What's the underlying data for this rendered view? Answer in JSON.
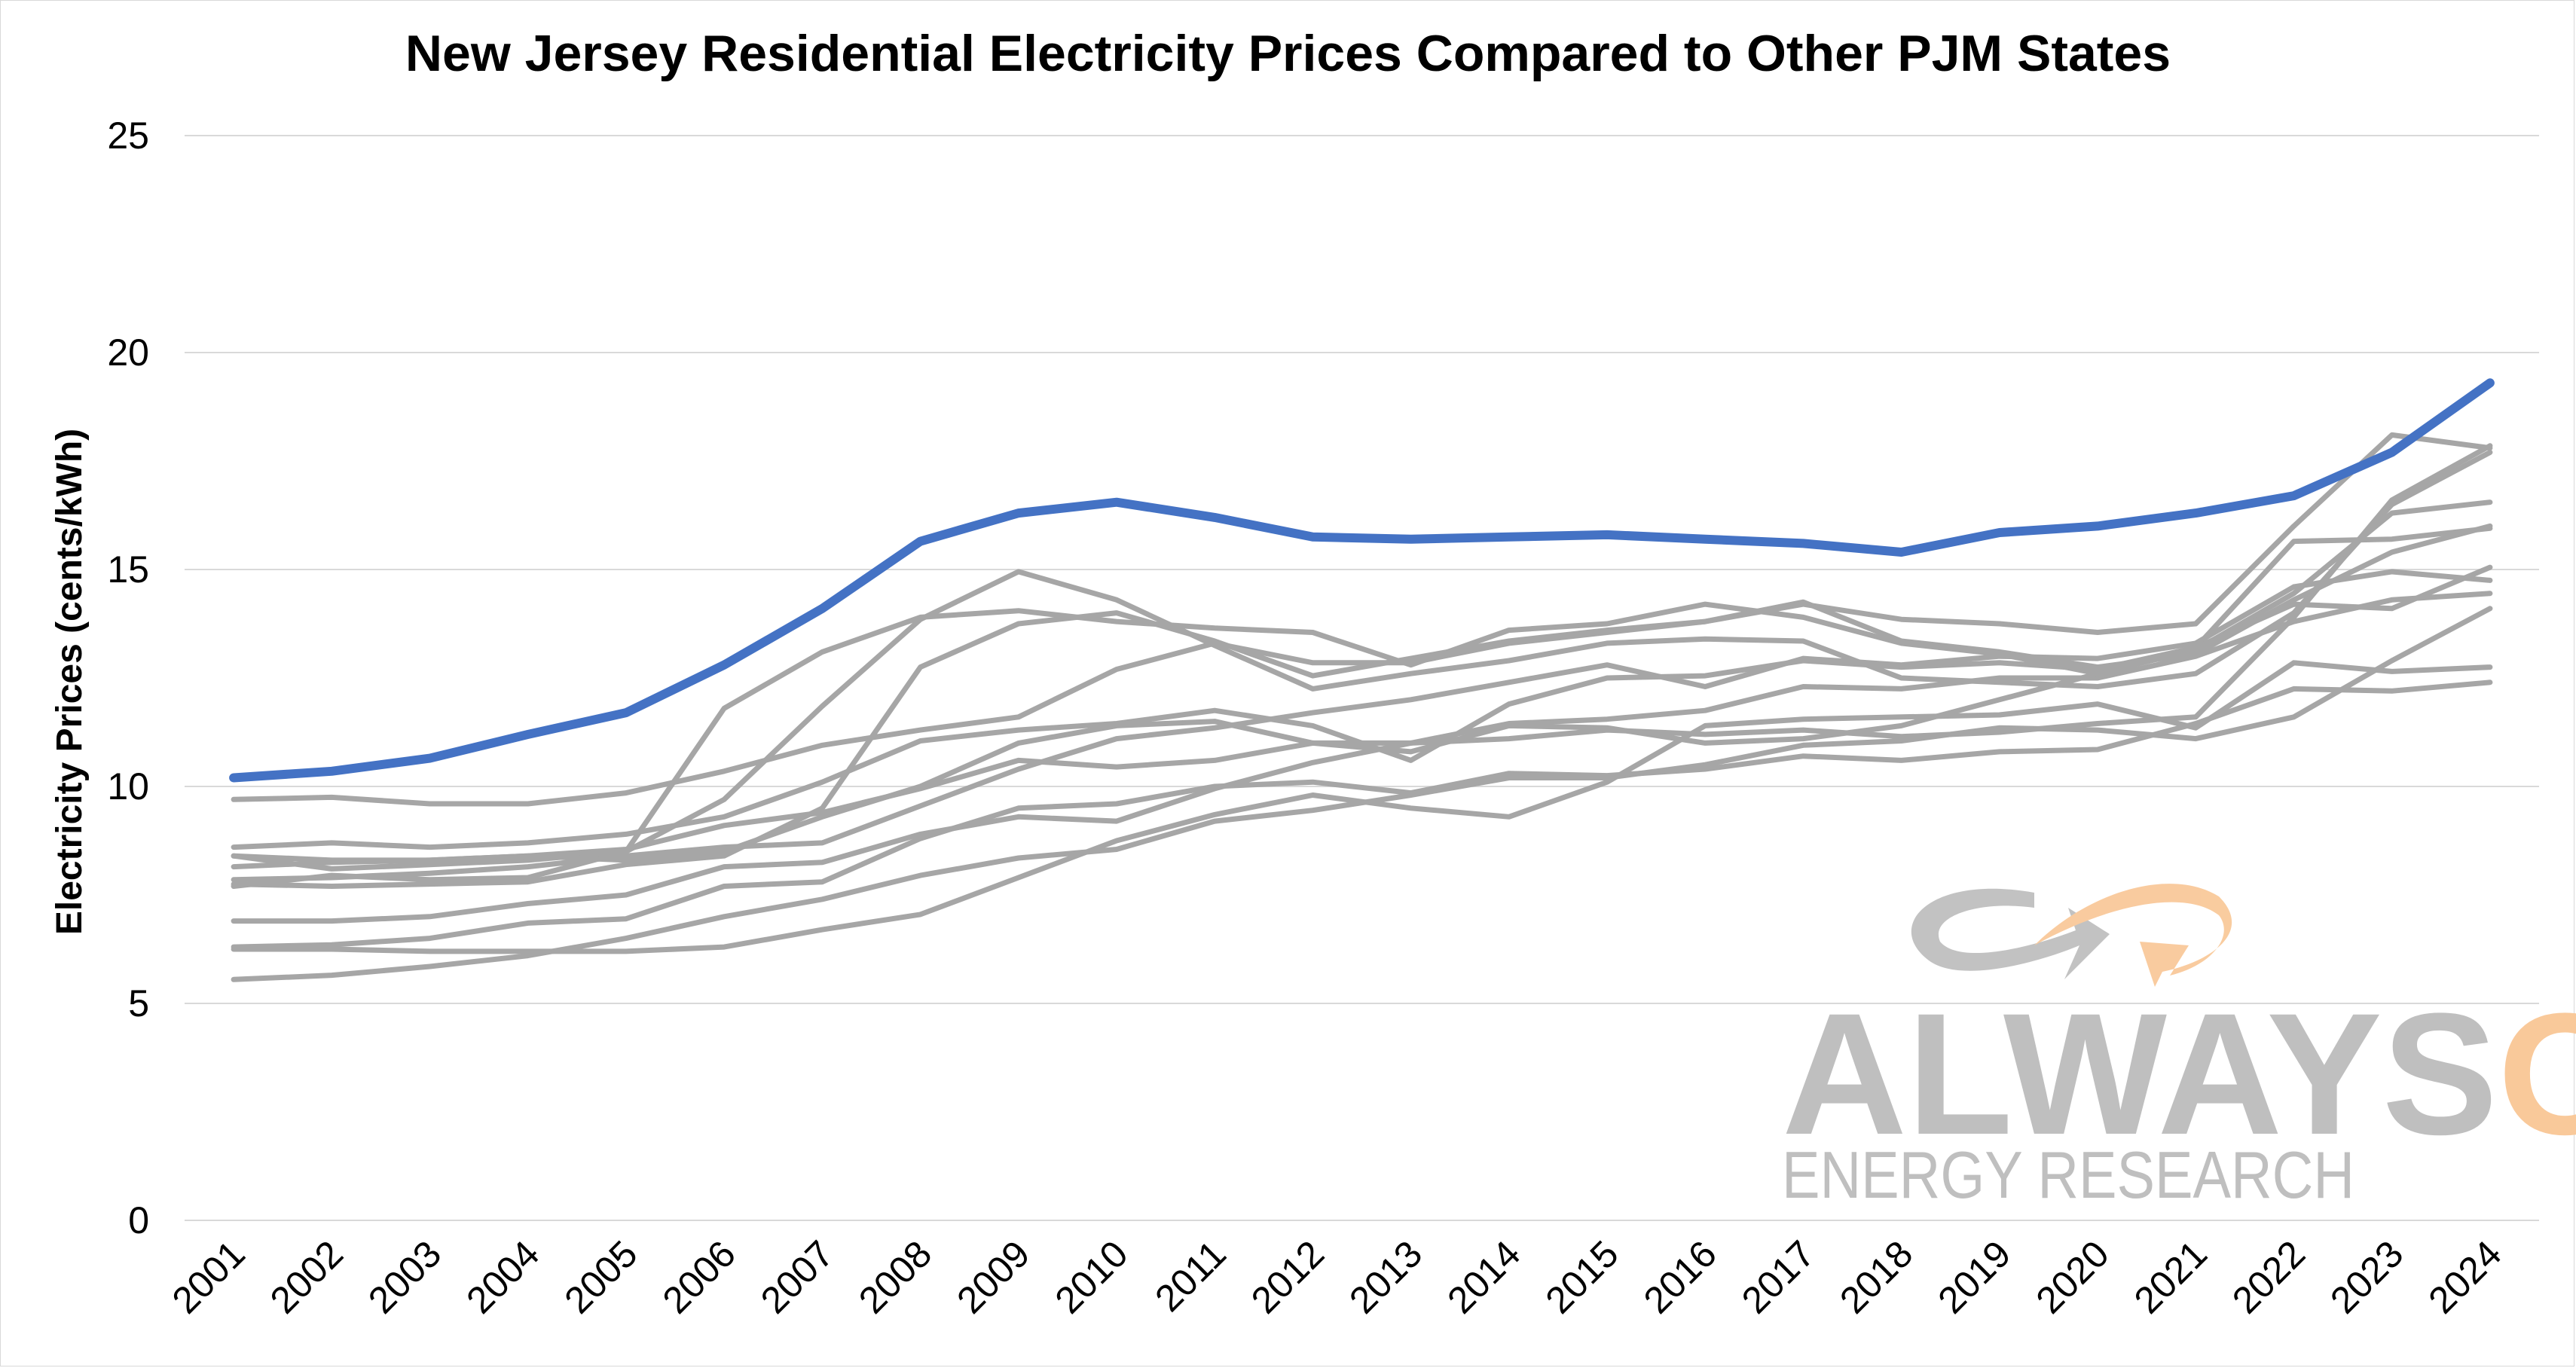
{
  "chart_data": {
    "type": "line",
    "title": "New Jersey Residential Electricity Prices Compared to Other PJM States",
    "xlabel": "",
    "ylabel": "Electricity Prices (cents/kWh)",
    "ylim": [
      0,
      25
    ],
    "yticks": [
      0,
      5,
      10,
      15,
      20,
      25
    ],
    "grid": "horizontal",
    "x": [
      "2001",
      "2002",
      "2003",
      "2004",
      "2005",
      "2006",
      "2007",
      "2008",
      "2009",
      "2010",
      "2011",
      "2012",
      "2013",
      "2014",
      "2015",
      "2016",
      "2017",
      "2018",
      "2019",
      "2020",
      "2021",
      "2022",
      "2023",
      "2024"
    ],
    "highlight_color": "#4472C4",
    "other_color": "#A6A6A6",
    "series": [
      {
        "highlight": true,
        "values": [
          10.2,
          10.35,
          10.65,
          11.2,
          11.7,
          12.8,
          14.1,
          15.65,
          16.3,
          16.55,
          16.2,
          15.75,
          15.7,
          15.75,
          15.8,
          15.7,
          15.6,
          15.4,
          15.85,
          16.0,
          16.3,
          16.7,
          17.7,
          19.3
        ]
      },
      {
        "highlight": false,
        "values": [
          9.7,
          9.75,
          9.6,
          9.6,
          9.85,
          10.35,
          10.95,
          11.3,
          11.6,
          12.7,
          13.3,
          12.85,
          12.85,
          13.3,
          13.55,
          13.8,
          14.2,
          13.85,
          13.75,
          13.55,
          13.75,
          16.0,
          18.1,
          17.8
        ]
      },
      {
        "highlight": false,
        "values": [
          8.6,
          8.7,
          8.6,
          8.7,
          8.9,
          9.3,
          10.1,
          11.05,
          11.3,
          11.45,
          11.75,
          11.4,
          10.6,
          11.9,
          12.5,
          12.55,
          12.9,
          12.75,
          12.85,
          12.7,
          13.2,
          15.65,
          15.7,
          15.95
        ]
      },
      {
        "highlight": false,
        "values": [
          8.4,
          8.1,
          8.2,
          8.3,
          8.5,
          9.7,
          11.85,
          13.85,
          14.95,
          14.3,
          13.25,
          12.25,
          12.6,
          12.9,
          13.3,
          13.4,
          13.35,
          12.5,
          12.4,
          12.3,
          12.6,
          14.0,
          16.5,
          17.7
        ]
      },
      {
        "highlight": false,
        "values": [
          8.15,
          8.25,
          8.3,
          8.4,
          8.55,
          9.1,
          9.4,
          9.95,
          10.6,
          10.45,
          10.6,
          11.0,
          11.0,
          11.1,
          11.3,
          11.2,
          11.3,
          11.15,
          11.25,
          11.45,
          11.6,
          13.9,
          16.6,
          17.85
        ]
      },
      {
        "highlight": false,
        "values": [
          7.85,
          7.9,
          8.0,
          8.15,
          8.4,
          8.6,
          8.7,
          9.55,
          10.4,
          11.1,
          11.35,
          11.7,
          12.0,
          12.4,
          12.8,
          12.3,
          12.95,
          12.8,
          13.0,
          12.95,
          13.3,
          14.6,
          14.95,
          14.75
        ]
      },
      {
        "highlight": false,
        "values": [
          7.7,
          7.95,
          7.85,
          7.9,
          8.5,
          11.8,
          13.1,
          13.9,
          14.05,
          13.8,
          13.65,
          13.55,
          12.8,
          13.6,
          13.75,
          14.2,
          13.9,
          13.3,
          13.05,
          12.6,
          13.15,
          14.45,
          16.3,
          16.55
        ]
      },
      {
        "highlight": false,
        "values": [
          7.75,
          7.7,
          7.75,
          7.8,
          8.2,
          8.4,
          9.5,
          12.75,
          13.75,
          14.0,
          13.35,
          12.55,
          12.95,
          13.35,
          13.6,
          13.8,
          14.25,
          13.35,
          13.1,
          12.75,
          13.05,
          14.3,
          15.4,
          16.0
        ]
      },
      {
        "highlight": false,
        "values": [
          6.9,
          6.9,
          7.0,
          7.3,
          7.5,
          8.15,
          8.25,
          8.9,
          9.3,
          9.2,
          9.95,
          10.55,
          11.0,
          11.45,
          11.55,
          11.75,
          12.3,
          12.25,
          12.5,
          12.5,
          13.0,
          13.8,
          14.3,
          14.45
        ]
      },
      {
        "highlight": false,
        "values": [
          6.3,
          6.35,
          6.5,
          6.85,
          6.95,
          7.7,
          7.8,
          8.8,
          9.5,
          9.6,
          10.0,
          10.1,
          9.85,
          10.3,
          10.25,
          10.4,
          10.7,
          10.6,
          10.8,
          10.85,
          11.45,
          12.25,
          12.2,
          12.4
        ]
      },
      {
        "highlight": false,
        "values": [
          6.25,
          6.25,
          6.2,
          6.2,
          6.2,
          6.3,
          6.7,
          7.05,
          7.9,
          8.75,
          9.35,
          9.8,
          9.5,
          9.3,
          10.1,
          11.4,
          11.55,
          11.6,
          11.65,
          11.9,
          11.35,
          12.85,
          12.65,
          12.75
        ]
      },
      {
        "highlight": false,
        "values": [
          5.55,
          5.65,
          5.85,
          6.1,
          6.5,
          7.0,
          7.4,
          7.95,
          8.35,
          8.55,
          9.2,
          9.45,
          9.8,
          10.2,
          10.2,
          10.5,
          10.95,
          11.05,
          11.35,
          11.3,
          11.1,
          11.6,
          12.9,
          14.1
        ]
      },
      {
        "highlight": false,
        "values": [
          8.4,
          8.3,
          8.3,
          8.4,
          8.3,
          8.5,
          9.3,
          10.0,
          11.0,
          11.4,
          11.5,
          11.0,
          10.8,
          11.4,
          11.35,
          11.0,
          11.1,
          11.4,
          12.0,
          12.6,
          13.2,
          14.2,
          14.1,
          15.05
        ]
      }
    ]
  },
  "watermark": {
    "word_gray": "ALWAYS",
    "word_orange": "ON",
    "subtitle": "ENERGY RESEARCH",
    "gray_color": "#BFBFBF",
    "orange_color": "#F9C99A"
  }
}
